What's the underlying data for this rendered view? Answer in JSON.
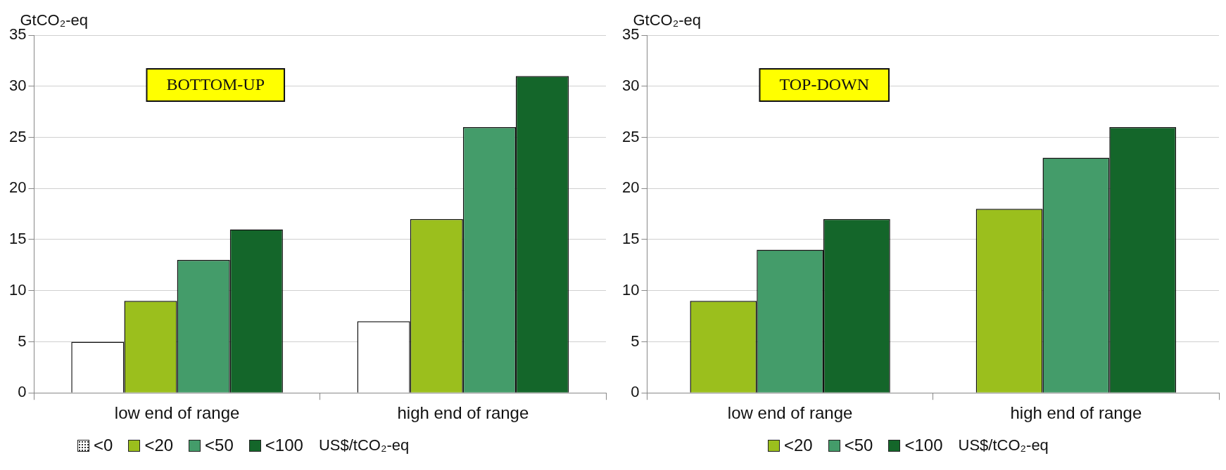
{
  "chart_data": [
    {
      "type": "bar",
      "ylabel": "GtCO₂-eq",
      "categories": [
        "low end of range",
        "high end of range"
      ],
      "series": [
        {
          "name": "<0",
          "color": "#ffffff",
          "values": [
            5,
            7
          ]
        },
        {
          "name": "<20",
          "color": "#9bbf1d",
          "values": [
            9,
            17
          ]
        },
        {
          "name": "<50",
          "color": "#449c6a",
          "values": [
            13,
            26
          ]
        },
        {
          "name": "<100",
          "color": "#14662a",
          "values": [
            16,
            31
          ]
        }
      ],
      "ylim": [
        0,
        35
      ],
      "yticks": [
        0,
        5,
        10,
        15,
        20,
        25,
        30,
        35
      ],
      "grid": "y",
      "legend": "bottom",
      "legend_title": "US$/tCO₂-eq",
      "annotations": [
        "BOTTOM-UP"
      ]
    },
    {
      "type": "bar",
      "ylabel": "GtCO₂-eq",
      "categories": [
        "low end of range",
        "high end of range"
      ],
      "series": [
        {
          "name": "<20",
          "color": "#9bbf1d",
          "values": [
            9,
            18
          ]
        },
        {
          "name": "<50",
          "color": "#449c6a",
          "values": [
            14,
            23
          ]
        },
        {
          "name": "<100",
          "color": "#14662a",
          "values": [
            17,
            26
          ]
        }
      ],
      "ylim": [
        0,
        35
      ],
      "yticks": [
        0,
        5,
        10,
        15,
        20,
        25,
        30,
        35
      ],
      "grid": "y",
      "legend": "bottom",
      "legend_title": "US$/tCO₂-eq",
      "annotations": [
        "TOP-DOWN"
      ]
    }
  ]
}
